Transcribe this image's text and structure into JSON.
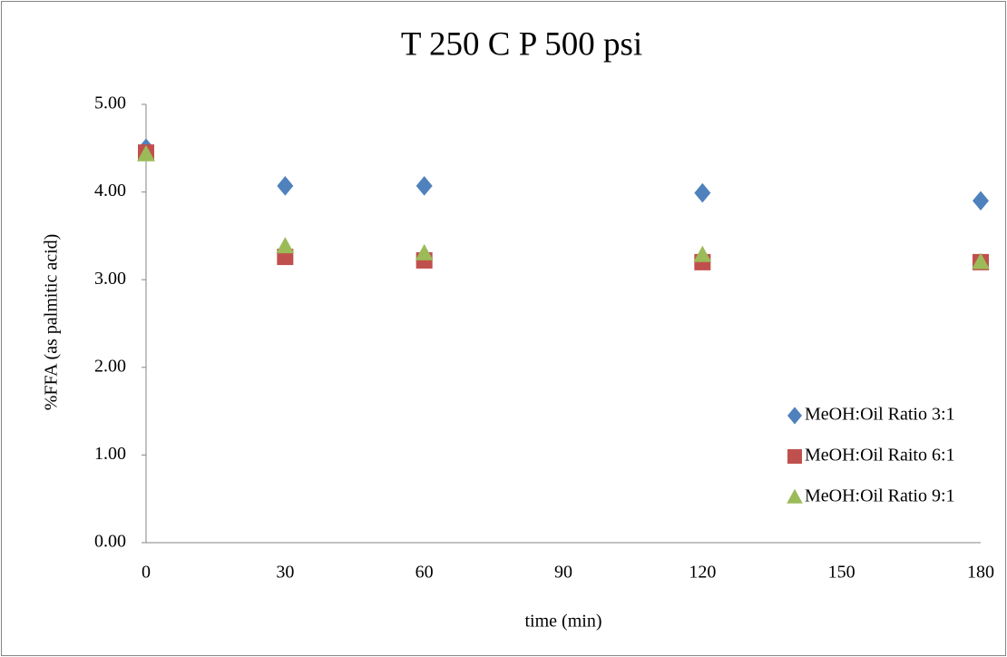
{
  "chart_data": {
    "type": "scatter",
    "title": "T 250 C P 500 psi",
    "x_label": "time (min)",
    "y_label": "%FFA (as palmitic acid)",
    "xlim": [
      0,
      180
    ],
    "xticks": [
      0,
      30,
      60,
      90,
      120,
      150,
      180
    ],
    "ylim": [
      0,
      5
    ],
    "yticks": [
      {
        "value": 0,
        "label": "0.00"
      },
      {
        "value": 1,
        "label": "1.00"
      },
      {
        "value": 2,
        "label": "2.00"
      },
      {
        "value": 3,
        "label": "3.00"
      },
      {
        "value": 4,
        "label": "4.00"
      },
      {
        "value": 5,
        "label": "5.00"
      }
    ],
    "grid": false,
    "legend": "right",
    "series": [
      {
        "name": "MeOH:Oil Ratio 3:1",
        "color": "#4f81bd",
        "marker": "diamond",
        "x": [
          0,
          30,
          60,
          120,
          180
        ],
        "values": [
          4.5,
          4.07,
          4.07,
          3.99,
          3.9
        ]
      },
      {
        "name": "MeOH:Oil Raito 6:1",
        "color": "#c0504d",
        "marker": "square",
        "x": [
          0,
          30,
          60,
          120,
          180
        ],
        "values": [
          4.45,
          3.26,
          3.22,
          3.2,
          3.2
        ]
      },
      {
        "name": "MeOH:Oil Ratio 9:1",
        "color": "#9bbb59",
        "marker": "triangle",
        "x": [
          0,
          30,
          60,
          120,
          180
        ],
        "values": [
          4.43,
          3.38,
          3.3,
          3.28,
          3.2
        ]
      }
    ]
  }
}
